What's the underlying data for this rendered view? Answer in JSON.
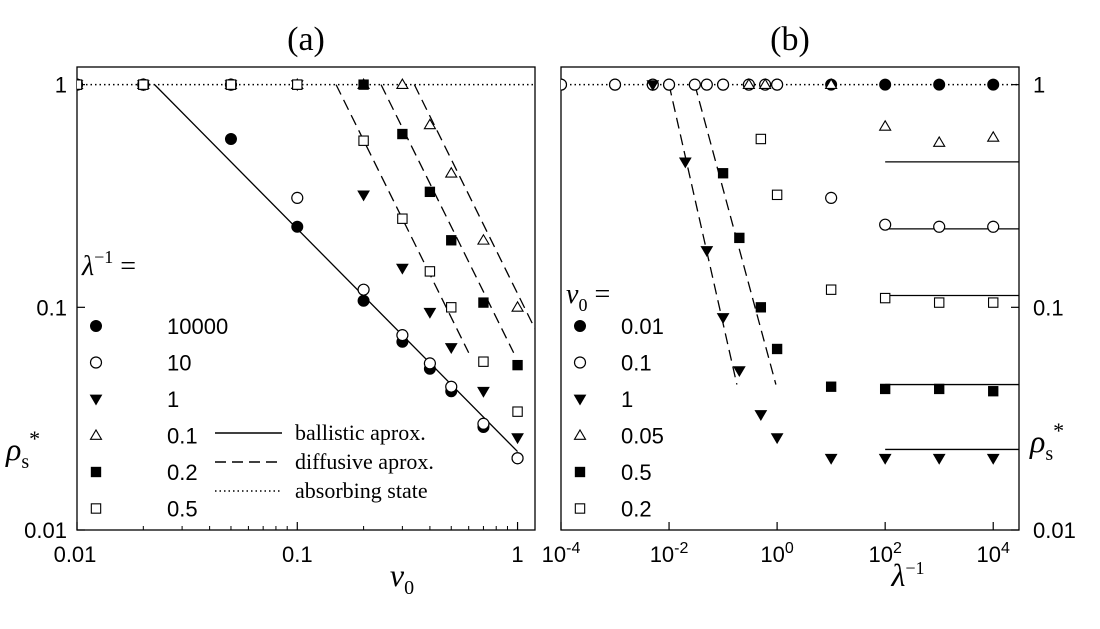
{
  "chart_data": [
    {
      "type": "scatter",
      "title": "(a)",
      "xlabel": "v0",
      "ylabel": "ρs*",
      "xscale": "log",
      "yscale": "log",
      "xlim": [
        0.01,
        1.2
      ],
      "ylim": [
        0.01,
        1.2
      ],
      "xticks": [
        {
          "v": 0.01,
          "label": "0.01"
        },
        {
          "v": 0.1,
          "label": "0.1"
        },
        {
          "v": 1,
          "label": "1"
        }
      ],
      "yticks": [
        {
          "v": 0.01,
          "label": "0.01"
        },
        {
          "v": 0.1,
          "label": "0.1"
        },
        {
          "v": 1,
          "label": "1"
        }
      ],
      "yaxis_side": "left",
      "legend": {
        "title": "λ−1 =",
        "placement": "left"
      },
      "series": [
        {
          "name": "10000",
          "marker": "filled-circle",
          "x": [
            0.01,
            0.02,
            0.05,
            0.1,
            0.2,
            0.3,
            0.4,
            0.5,
            0.7,
            1.0
          ],
          "y": [
            1,
            1,
            0.57,
            0.23,
            0.107,
            0.07,
            0.053,
            0.042,
            0.029,
            0.021
          ]
        },
        {
          "name": "10",
          "marker": "open-circle",
          "x": [
            0.01,
            0.02,
            0.05,
            0.1,
            0.2,
            0.3,
            0.4,
            0.5,
            0.7,
            1.0
          ],
          "y": [
            1,
            1,
            1,
            0.31,
            0.12,
            0.075,
            0.056,
            0.044,
            0.03,
            0.021
          ]
        },
        {
          "name": "1",
          "marker": "filled-triangle-down",
          "x": [
            0.01,
            0.02,
            0.05,
            0.1,
            0.2,
            0.3,
            0.4,
            0.5,
            0.7,
            1.0
          ],
          "y": [
            1,
            1,
            1,
            1,
            0.32,
            0.15,
            0.095,
            0.066,
            0.042,
            0.026
          ]
        },
        {
          "name": "0.1",
          "marker": "open-triangle-up",
          "x": [
            0.01,
            0.02,
            0.05,
            0.1,
            0.2,
            0.3,
            0.4,
            0.5,
            0.7,
            1.0
          ],
          "y": [
            1,
            1,
            1,
            1,
            1,
            1,
            0.66,
            0.4,
            0.2,
            0.1
          ]
        },
        {
          "name": "0.2",
          "marker": "filled-square",
          "x": [
            0.01,
            0.02,
            0.05,
            0.1,
            0.2,
            0.3,
            0.4,
            0.5,
            0.7,
            1.0
          ],
          "y": [
            1,
            1,
            1,
            1,
            1,
            0.6,
            0.33,
            0.2,
            0.105,
            0.055
          ]
        },
        {
          "name": "0.5",
          "marker": "open-square",
          "x": [
            0.01,
            0.02,
            0.05,
            0.1,
            0.2,
            0.3,
            0.4,
            0.5,
            0.7,
            1.0
          ],
          "y": [
            1,
            1,
            1,
            1,
            0.56,
            0.25,
            0.145,
            0.1,
            0.057,
            0.034
          ]
        }
      ],
      "lines": [
        {
          "name": "ballistic aprox.",
          "style": "solid",
          "x": [
            0.0225,
            1.0
          ],
          "y": [
            1.0,
            0.0225
          ]
        },
        {
          "name": "diffusive aprox.",
          "style": "dashed",
          "x": [
            0.15,
            0.6
          ],
          "y": [
            1.0,
            0.0625
          ]
        },
        {
          "name": "diffusive aprox.",
          "style": "dashed",
          "x": [
            0.24,
            0.96
          ],
          "y": [
            1.0,
            0.0625
          ]
        },
        {
          "name": "diffusive aprox.",
          "style": "dashed",
          "x": [
            0.34,
            1.2
          ],
          "y": [
            1.0,
            0.08
          ]
        },
        {
          "name": "absorbing state",
          "style": "dotted",
          "x": [
            0.01,
            1.2
          ],
          "y": [
            1,
            1
          ]
        }
      ],
      "line_legend": [
        {
          "name": "ballistic aprox.",
          "style": "solid"
        },
        {
          "name": "diffusive aprox.",
          "style": "dashed"
        },
        {
          "name": "absorbing state",
          "style": "dotted"
        }
      ]
    },
    {
      "type": "scatter",
      "title": "(b)",
      "xlabel": "λ−1",
      "ylabel": "ρs*",
      "xscale": "log",
      "yscale": "log",
      "xlim": [
        0.0001,
        30000
      ],
      "ylim": [
        0.01,
        1.2
      ],
      "xticks": [
        {
          "v": 0.0001,
          "label": "10-4"
        },
        {
          "v": 0.01,
          "label": "10-2"
        },
        {
          "v": 1,
          "label": "100"
        },
        {
          "v": 100,
          "label": "102"
        },
        {
          "v": 10000,
          "label": "104"
        }
      ],
      "yticks": [
        {
          "v": 0.01,
          "label": "0.01"
        },
        {
          "v": 0.1,
          "label": "0.1"
        },
        {
          "v": 1,
          "label": "1"
        }
      ],
      "yaxis_side": "right",
      "legend": {
        "title": "v0 =",
        "placement": "left"
      },
      "series": [
        {
          "name": "0.01",
          "marker": "filled-circle",
          "x": [
            0.0001,
            0.001,
            0.01,
            0.1,
            1,
            10,
            100,
            1000,
            10000
          ],
          "y": [
            1,
            1,
            1,
            1,
            1,
            1,
            1,
            1,
            1
          ]
        },
        {
          "name": "0.1",
          "marker": "open-circle",
          "x": [
            0.0001,
            0.001,
            0.005,
            0.01,
            0.03,
            0.05,
            0.1,
            0.3,
            0.6,
            1,
            10,
            100,
            1000,
            10000
          ],
          "y": [
            1,
            1,
            1,
            1,
            1,
            1,
            1,
            1,
            1,
            1,
            0.31,
            0.235,
            0.23,
            0.23
          ]
        },
        {
          "name": "1",
          "marker": "filled-triangle-down",
          "x": [
            0.005,
            0.02,
            0.05,
            0.1,
            0.2,
            0.5,
            1,
            10,
            100,
            1000,
            10000
          ],
          "y": [
            1,
            0.45,
            0.18,
            0.09,
            0.052,
            0.033,
            0.026,
            0.021,
            0.021,
            0.021,
            0.021
          ]
        },
        {
          "name": "0.05",
          "marker": "open-triangle-up",
          "x": [
            0.3,
            0.6,
            10,
            100,
            1000,
            10000
          ],
          "y": [
            1,
            1,
            1,
            0.65,
            0.55,
            0.58
          ]
        },
        {
          "name": "0.5",
          "marker": "filled-square",
          "x": [
            0.1,
            0.2,
            0.5,
            1,
            10,
            100,
            1000,
            10000
          ],
          "y": [
            0.4,
            0.205,
            0.1,
            0.065,
            0.044,
            0.043,
            0.043,
            0.042
          ]
        },
        {
          "name": "0.2",
          "marker": "open-square",
          "x": [
            0.5,
            1,
            10,
            100,
            1000,
            10000
          ],
          "y": [
            0.57,
            0.32,
            0.12,
            0.11,
            0.105,
            0.105
          ]
        }
      ],
      "lines": [
        {
          "style": "dashed",
          "x": [
            0.01,
            0.18
          ],
          "y": [
            1.0,
            0.045
          ]
        },
        {
          "style": "dashed",
          "x": [
            0.03,
            0.95
          ],
          "y": [
            1.0,
            0.045
          ]
        },
        {
          "style": "solid",
          "x": [
            100,
            30000
          ],
          "y": [
            0.45,
            0.45
          ]
        },
        {
          "style": "solid",
          "x": [
            100,
            30000
          ],
          "y": [
            0.225,
            0.225
          ]
        },
        {
          "style": "solid",
          "x": [
            100,
            30000
          ],
          "y": [
            0.113,
            0.113
          ]
        },
        {
          "style": "solid",
          "x": [
            100,
            30000
          ],
          "y": [
            0.045,
            0.045
          ]
        },
        {
          "style": "solid",
          "x": [
            100,
            30000
          ],
          "y": [
            0.023,
            0.023
          ]
        },
        {
          "style": "dotted",
          "x": [
            0.0001,
            30000
          ],
          "y": [
            1,
            1
          ]
        }
      ]
    }
  ]
}
